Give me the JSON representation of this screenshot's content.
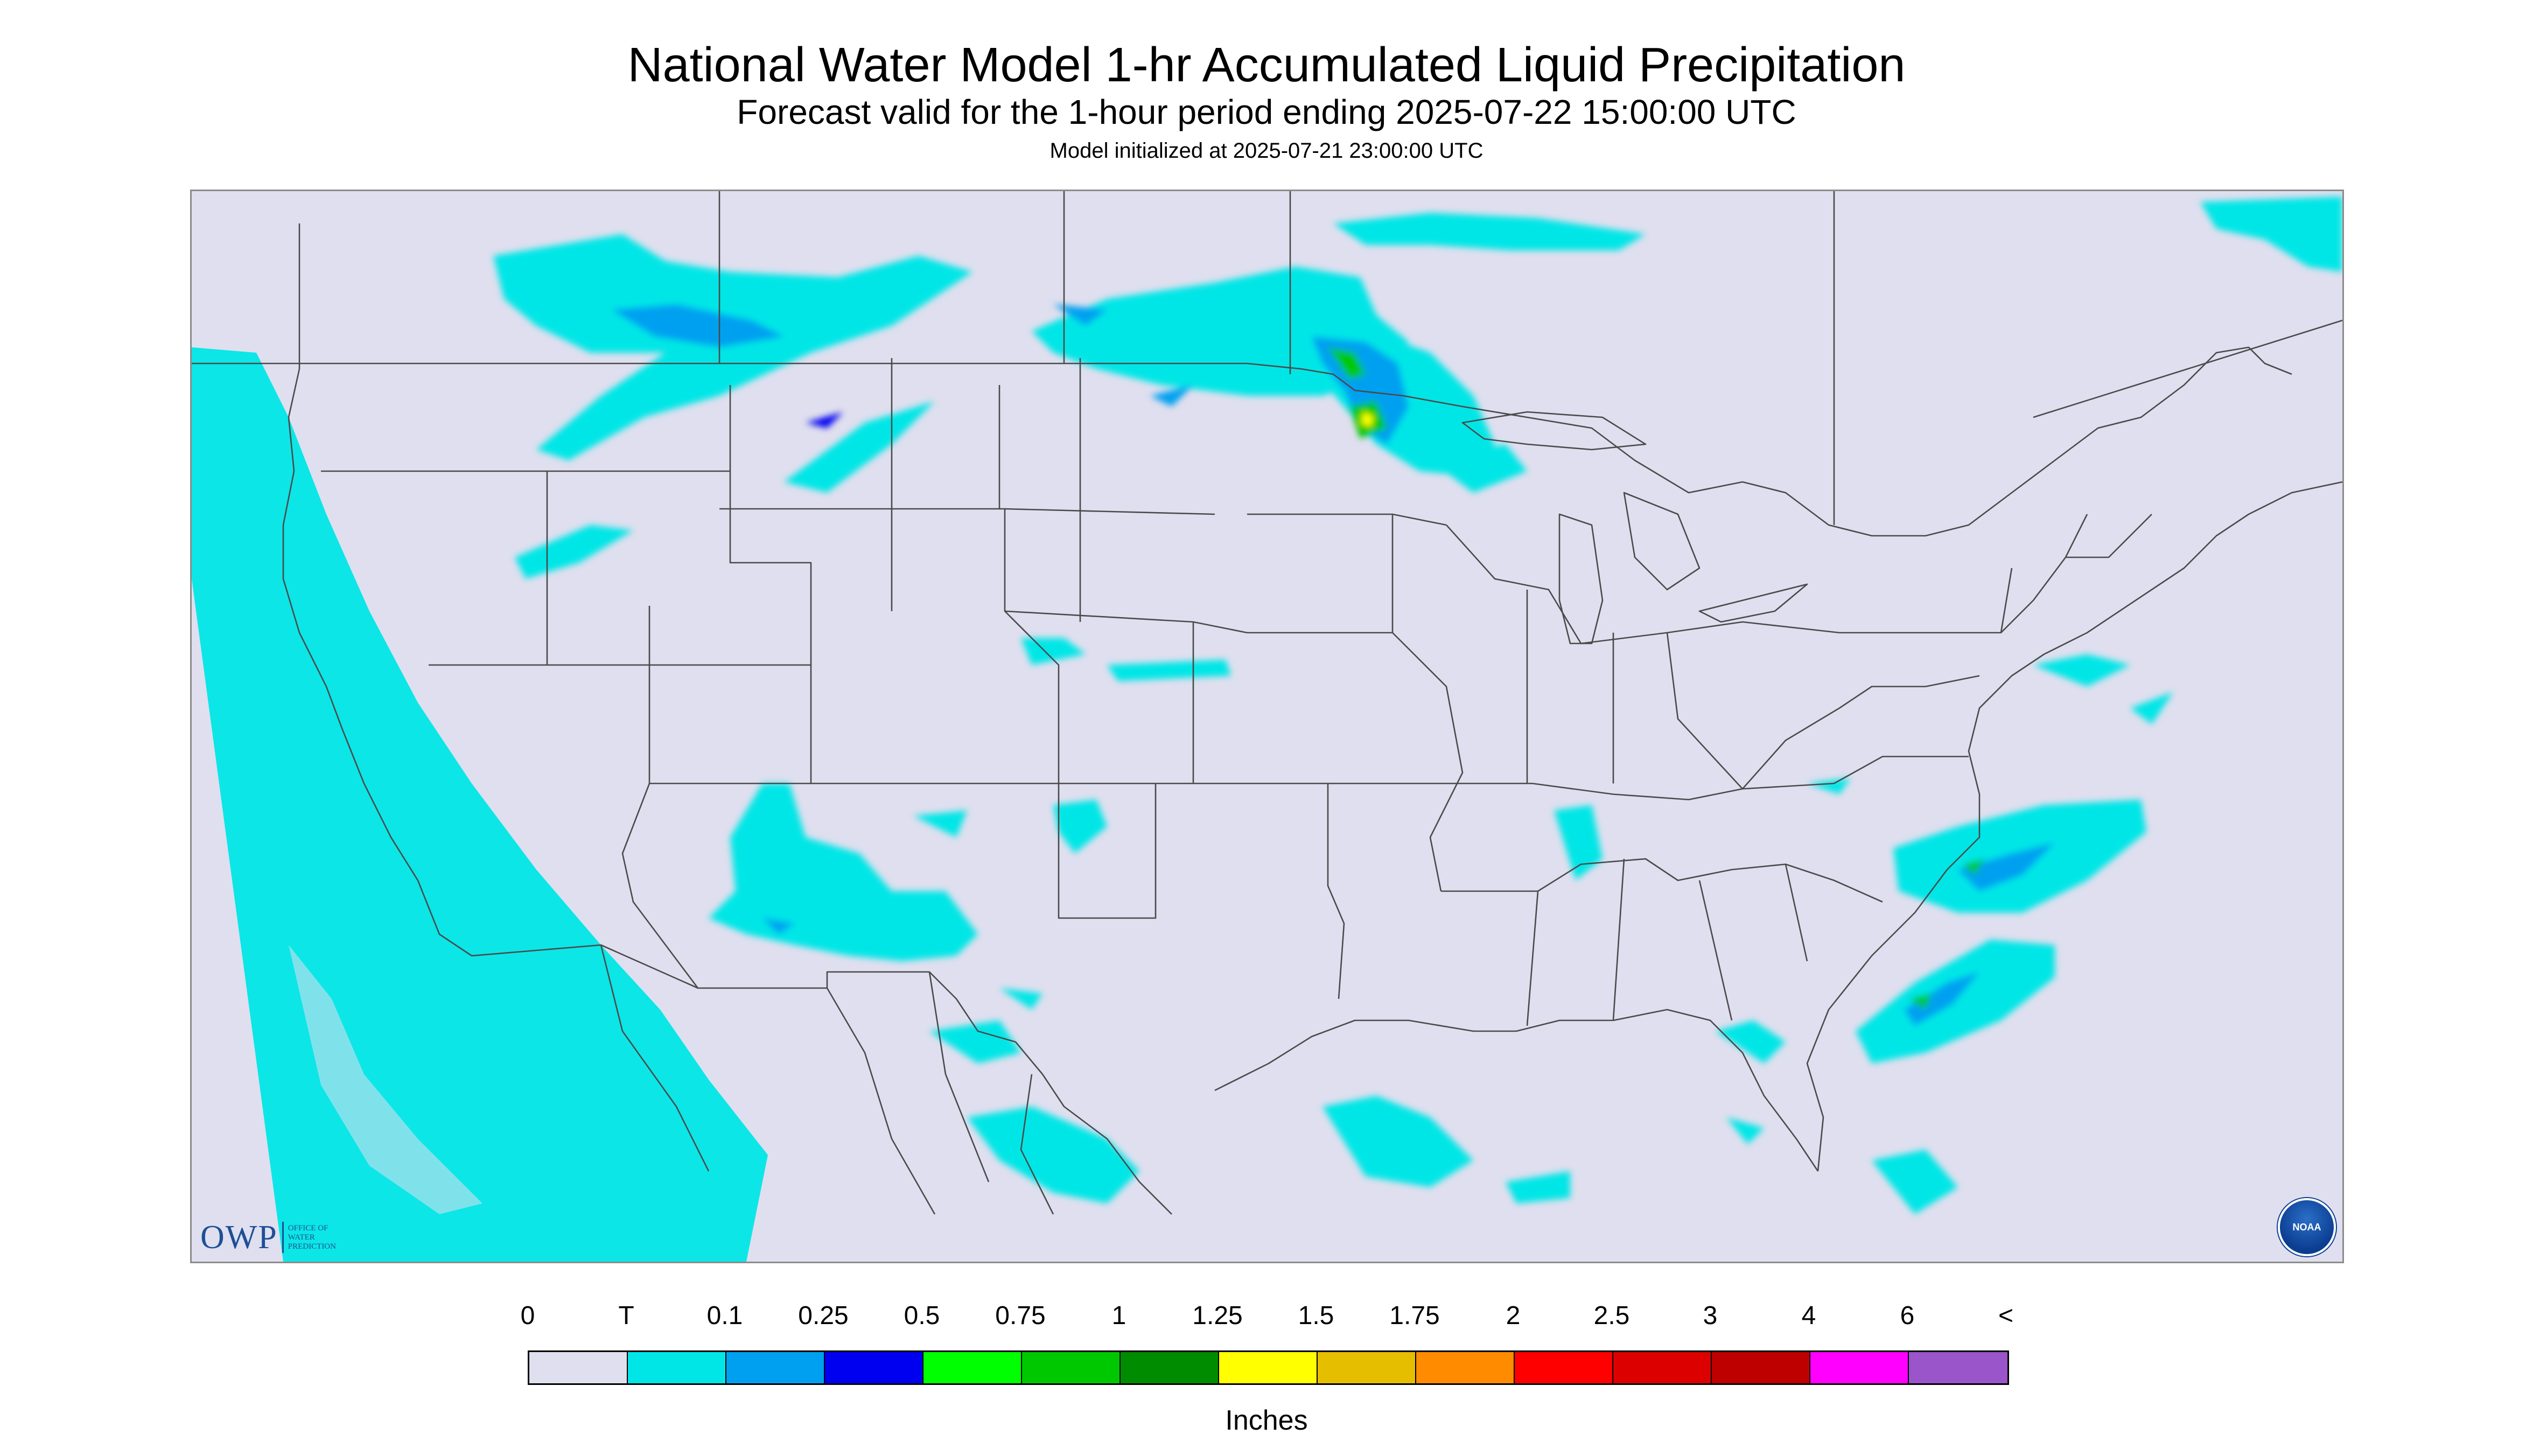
{
  "header": {
    "title": "National Water Model 1-hr Accumulated Liquid Precipitation",
    "subtitle": "Forecast valid for the 1-hour period ending 2025-07-22 15:00:00 UTC",
    "initialized": "Model initialized at 2025-07-21 23:00:00 UTC"
  },
  "map": {
    "background_color": "#dfdfef",
    "boundary_color": "#4a4a4a",
    "offgrid_color": "#dfdfef",
    "owp_logo": {
      "mark": "OWP",
      "lines": [
        "Office of",
        "Water",
        "Prediction"
      ]
    },
    "noaa_logo": {
      "text": "NOAA"
    }
  },
  "legend": {
    "labels": [
      "0",
      "T",
      "0.1",
      "0.25",
      "0.5",
      "0.75",
      "1",
      "1.25",
      "1.5",
      "1.75",
      "2",
      "2.5",
      "3",
      "4",
      "6",
      "<"
    ],
    "colors": [
      "#dfdfef",
      "#00e6e6",
      "#00a0f0",
      "#0000f0",
      "#00ff00",
      "#00c800",
      "#008c00",
      "#ffff00",
      "#e6be00",
      "#ff8c00",
      "#ff0000",
      "#dc0000",
      "#be0000",
      "#ff00ff",
      "#9955c9"
    ],
    "units": "Inches"
  }
}
